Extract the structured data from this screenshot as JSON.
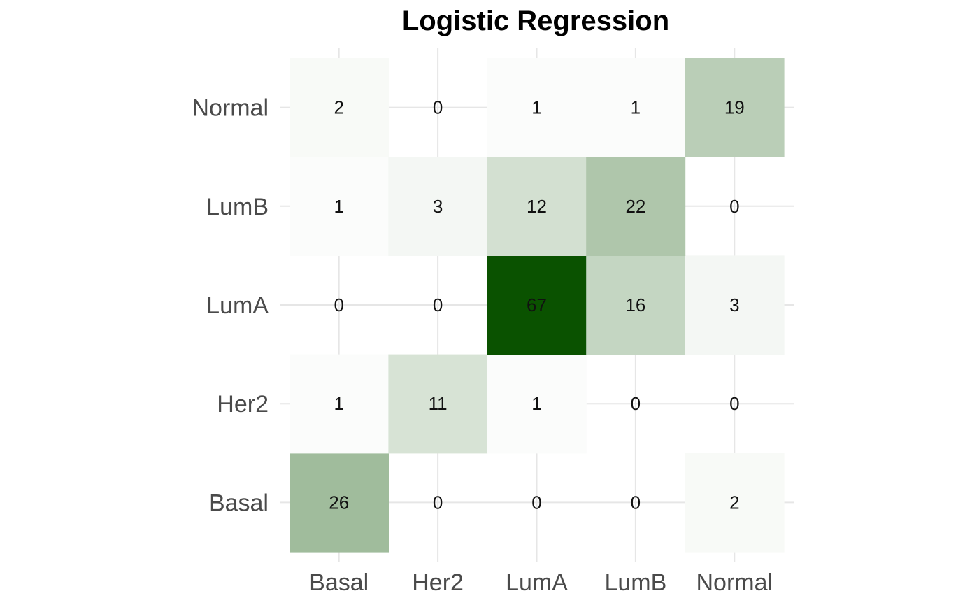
{
  "chart_data": {
    "type": "heatmap",
    "title": "Logistic Regression",
    "xlabel": "",
    "ylabel": "",
    "x_categories": [
      "Basal",
      "Her2",
      "LumA",
      "LumB",
      "Normal"
    ],
    "y_categories": [
      "Basal",
      "Her2",
      "LumA",
      "LumB",
      "Normal"
    ],
    "values": [
      [
        26,
        0,
        0,
        0,
        2
      ],
      [
        1,
        11,
        1,
        0,
        0
      ],
      [
        0,
        0,
        67,
        16,
        3
      ],
      [
        1,
        3,
        12,
        22,
        0
      ],
      [
        2,
        0,
        1,
        1,
        19
      ]
    ],
    "color_low": "#ffffff",
    "color_high": "#0a5200",
    "gridlines": true,
    "legend": "none"
  }
}
